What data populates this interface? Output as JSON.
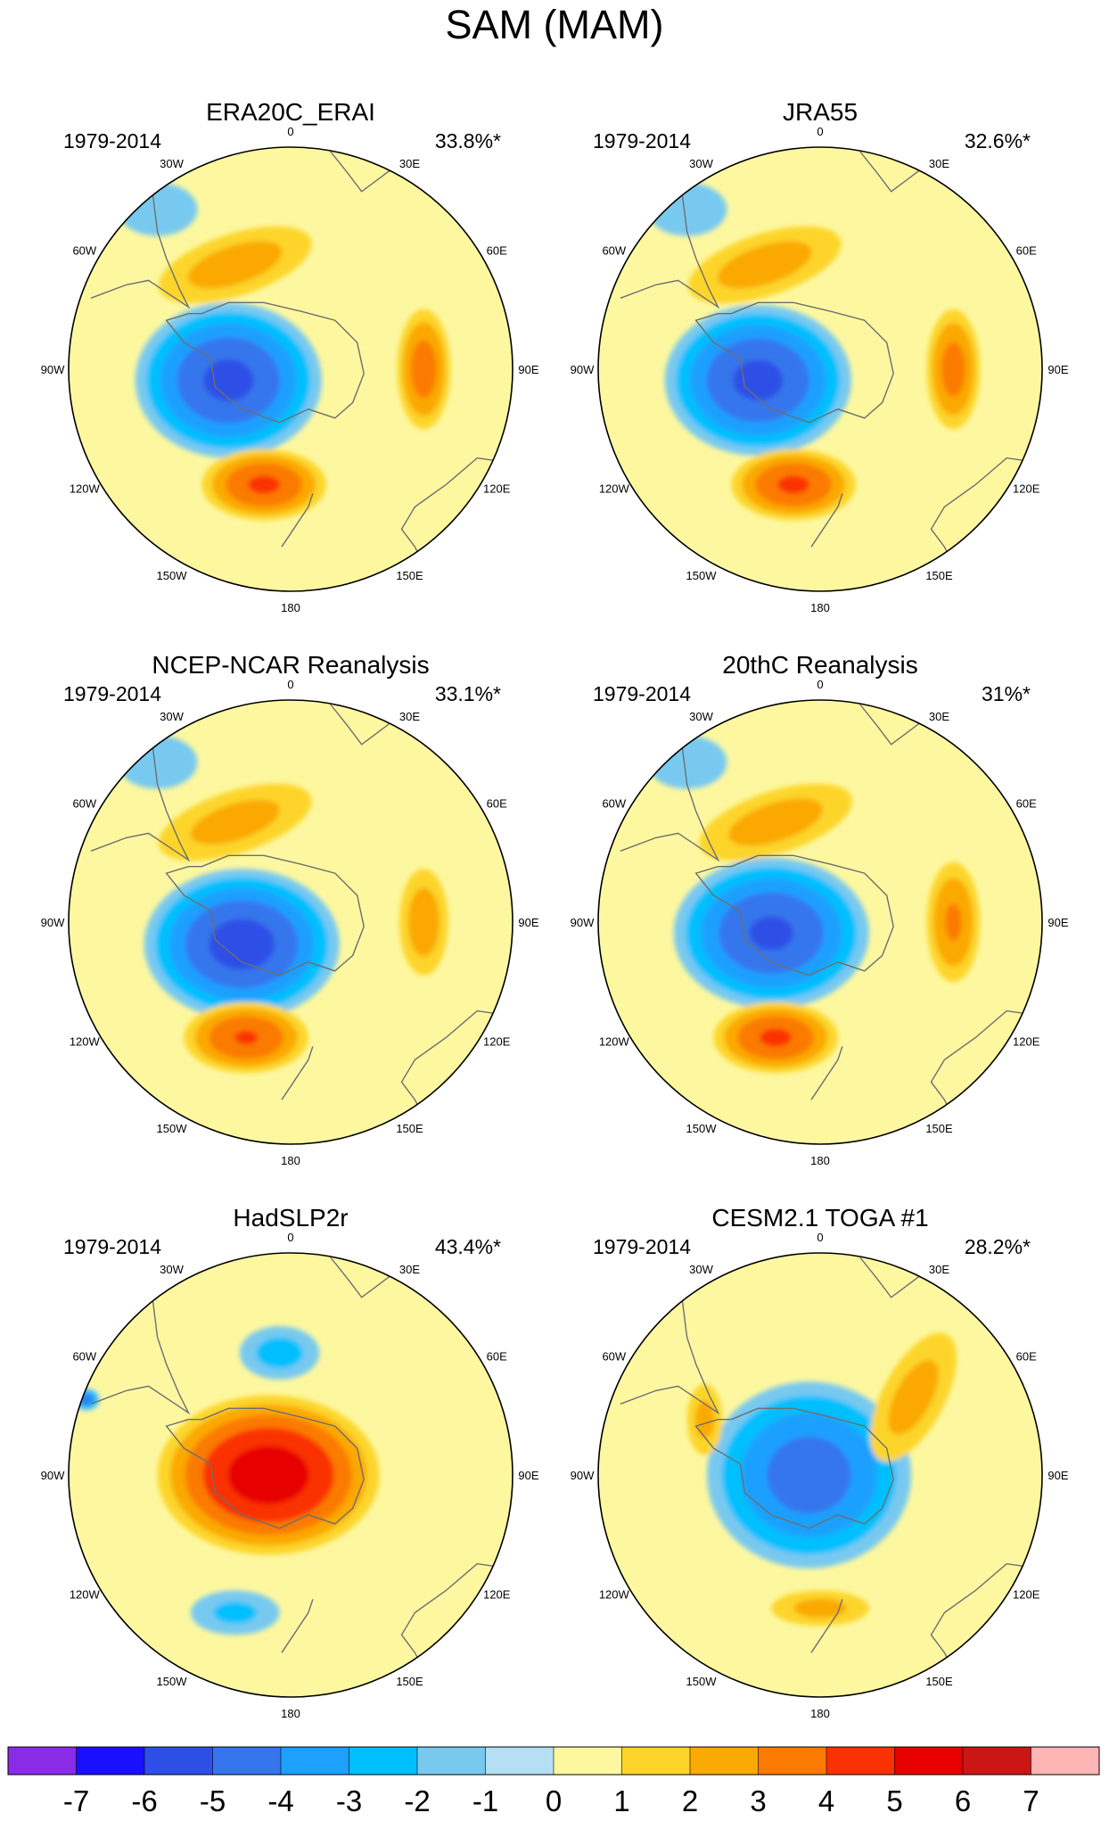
{
  "figure": {
    "title": "SAM (MAM)"
  },
  "chart_data": {
    "type": "contour-map",
    "title": "SAM (MAM)",
    "projection": "South polar stereographic",
    "longitude_labels": [
      "0",
      "30E",
      "60E",
      "90E",
      "120E",
      "150E",
      "180",
      "150W",
      "120W",
      "90W",
      "60W",
      "30W"
    ],
    "panels": [
      {
        "name": "ERA20C_ERAI",
        "period": "1979-2014",
        "variance": "33.8%*",
        "features": [
          {
            "kind": "low",
            "x": -0.28,
            "y": -0.05,
            "rx": 0.42,
            "ry": 0.35,
            "peak": -4.3
          },
          {
            "kind": "high",
            "x": -0.25,
            "y": 0.47,
            "rx": 0.36,
            "ry": 0.14,
            "peak": 1.6,
            "angle": -18
          },
          {
            "kind": "high",
            "x": 0.6,
            "y": 0.0,
            "rx": 0.12,
            "ry": 0.27,
            "peak": 2.6
          },
          {
            "kind": "high",
            "x": -0.12,
            "y": -0.52,
            "rx": 0.28,
            "ry": 0.16,
            "peak": 3.2
          },
          {
            "kind": "low",
            "x": -0.6,
            "y": 0.72,
            "rx": 0.18,
            "ry": 0.12,
            "peak": -0.6
          }
        ]
      },
      {
        "name": "JRA55",
        "period": "1979-2014",
        "variance": "32.6%*",
        "features": [
          {
            "kind": "low",
            "x": -0.28,
            "y": -0.05,
            "rx": 0.42,
            "ry": 0.34,
            "peak": -4.3
          },
          {
            "kind": "high",
            "x": -0.25,
            "y": 0.47,
            "rx": 0.36,
            "ry": 0.14,
            "peak": 1.6,
            "angle": -18
          },
          {
            "kind": "high",
            "x": 0.6,
            "y": 0.0,
            "rx": 0.12,
            "ry": 0.27,
            "peak": 2.5
          },
          {
            "kind": "high",
            "x": -0.12,
            "y": -0.52,
            "rx": 0.28,
            "ry": 0.16,
            "peak": 3.2
          },
          {
            "kind": "low",
            "x": -0.6,
            "y": 0.72,
            "rx": 0.18,
            "ry": 0.12,
            "peak": -0.6
          }
        ]
      },
      {
        "name": "NCEP-NCAR Reanalysis",
        "period": "1979-2014",
        "variance": "33.1%*",
        "features": [
          {
            "kind": "low",
            "x": -0.22,
            "y": -0.1,
            "rx": 0.44,
            "ry": 0.34,
            "peak": -4.5
          },
          {
            "kind": "high",
            "x": -0.25,
            "y": 0.45,
            "rx": 0.36,
            "ry": 0.14,
            "peak": 1.5,
            "angle": -18
          },
          {
            "kind": "high",
            "x": 0.6,
            "y": 0.0,
            "rx": 0.11,
            "ry": 0.24,
            "peak": 1.7
          },
          {
            "kind": "high",
            "x": -0.2,
            "y": -0.52,
            "rx": 0.28,
            "ry": 0.16,
            "peak": 3.1
          },
          {
            "kind": "low",
            "x": -0.6,
            "y": 0.72,
            "rx": 0.18,
            "ry": 0.12,
            "peak": -0.6
          }
        ]
      },
      {
        "name": "20thC Reanalysis",
        "period": "1979-2014",
        "variance": "31%*",
        "features": [
          {
            "kind": "low",
            "x": -0.22,
            "y": -0.05,
            "rx": 0.44,
            "ry": 0.34,
            "peak": -4.2
          },
          {
            "kind": "high",
            "x": -0.2,
            "y": 0.45,
            "rx": 0.36,
            "ry": 0.14,
            "peak": 1.6,
            "angle": -18
          },
          {
            "kind": "high",
            "x": 0.6,
            "y": 0.0,
            "rx": 0.12,
            "ry": 0.27,
            "peak": 2.2
          },
          {
            "kind": "high",
            "x": -0.2,
            "y": -0.52,
            "rx": 0.28,
            "ry": 0.16,
            "peak": 3.2
          },
          {
            "kind": "low",
            "x": -0.6,
            "y": 0.72,
            "rx": 0.18,
            "ry": 0.12,
            "peak": -0.6
          }
        ]
      },
      {
        "name": "HadSLP2r",
        "period": "1979-2014",
        "variance": "43.4%*",
        "features": [
          {
            "kind": "high",
            "x": -0.1,
            "y": 0.0,
            "rx": 0.5,
            "ry": 0.36,
            "peak": 4.6
          },
          {
            "kind": "low",
            "x": -0.05,
            "y": 0.55,
            "rx": 0.18,
            "ry": 0.12,
            "peak": -1.5
          },
          {
            "kind": "low",
            "x": -0.25,
            "y": -0.62,
            "rx": 0.2,
            "ry": 0.1,
            "peak": -1.3
          },
          {
            "kind": "low",
            "x": -0.92,
            "y": 0.34,
            "rx": 0.06,
            "ry": 0.05,
            "peak": -3.5
          }
        ]
      },
      {
        "name": "CESM2.1 TOGA #1",
        "period": "1979-2014",
        "variance": "28.2%*",
        "features": [
          {
            "kind": "low",
            "x": -0.05,
            "y": 0.0,
            "rx": 0.46,
            "ry": 0.42,
            "peak": -3.6
          },
          {
            "kind": "high",
            "x": 0.42,
            "y": 0.35,
            "rx": 0.14,
            "ry": 0.32,
            "peak": 1.5,
            "angle": 28
          },
          {
            "kind": "high",
            "x": -0.52,
            "y": 0.25,
            "rx": 0.08,
            "ry": 0.16,
            "peak": 1.4
          },
          {
            "kind": "high",
            "x": 0.0,
            "y": -0.6,
            "rx": 0.22,
            "ry": 0.08,
            "peak": 1.4
          }
        ]
      }
    ],
    "colorbar": {
      "levels": [
        -7,
        -6,
        -5,
        -4,
        -3,
        -2,
        -1,
        0,
        1,
        2,
        3,
        4,
        5,
        6,
        7
      ],
      "labels": [
        "-7",
        "-6",
        "-5",
        "-4",
        "-3",
        "-2",
        "-1",
        "0",
        "1",
        "2",
        "3",
        "4",
        "5",
        "6",
        "7"
      ],
      "colors": [
        "#8a2be8",
        "#1a10ff",
        "#2e4fe6",
        "#3676ec",
        "#1ea0ff",
        "#00bfff",
        "#78c9f0",
        "#b7dff3",
        "#fdf8a0",
        "#fdd52a",
        "#fba905",
        "#fb7a04",
        "#fa3100",
        "#e60000",
        "#cc1616",
        "#fdb5b5"
      ]
    }
  }
}
